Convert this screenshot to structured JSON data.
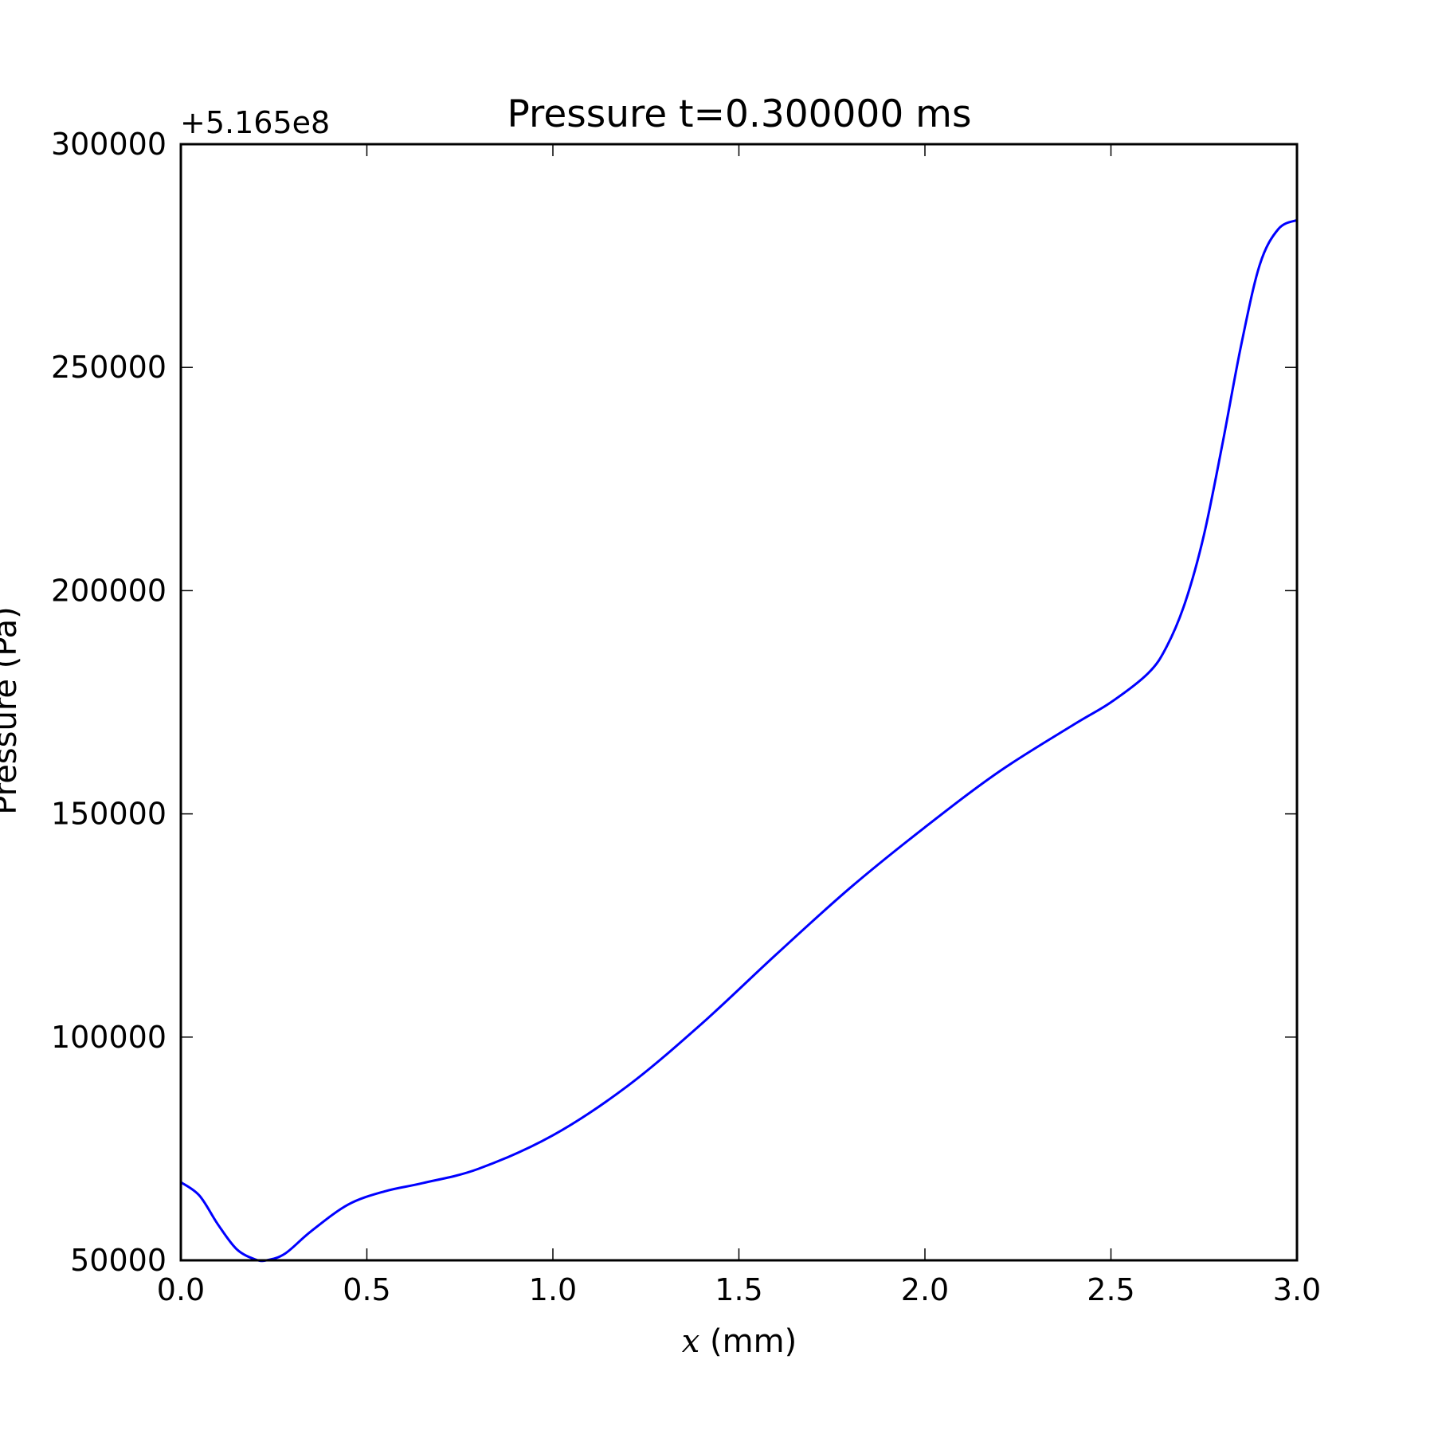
{
  "chart_data": {
    "type": "line",
    "title": "Pressure t=0.300000 ms",
    "xlabel_var": "x",
    "xlabel_unit": " (mm)",
    "ylabel": "Pressure (Pa)",
    "y_offset_label": "+5.165e8",
    "xlim": [
      0.0,
      3.0
    ],
    "ylim": [
      50000,
      300000
    ],
    "x_ticks": [
      "0.0",
      "0.5",
      "1.0",
      "1.5",
      "2.0",
      "2.5",
      "3.0"
    ],
    "y_ticks": [
      "50000",
      "100000",
      "150000",
      "200000",
      "250000",
      "300000"
    ],
    "grid": false,
    "series": [
      {
        "color": "#0000ff",
        "x": [
          0.0,
          0.05,
          0.1,
          0.15,
          0.2,
          0.23,
          0.28,
          0.35,
          0.45,
          0.55,
          0.65,
          0.8,
          1.0,
          1.2,
          1.4,
          1.6,
          1.8,
          2.0,
          2.2,
          2.4,
          2.5,
          2.6,
          2.65,
          2.7,
          2.75,
          2.8,
          2.85,
          2.9,
          2.95,
          3.0
        ],
        "y": [
          67500,
          64500,
          58000,
          52500,
          50200,
          50000,
          51500,
          56500,
          62500,
          65500,
          67300,
          70500,
          78000,
          89000,
          103000,
          118500,
          133500,
          147000,
          159500,
          170000,
          175000,
          181500,
          187500,
          197500,
          212500,
          233000,
          255000,
          273000,
          281000,
          283000
        ]
      }
    ]
  }
}
